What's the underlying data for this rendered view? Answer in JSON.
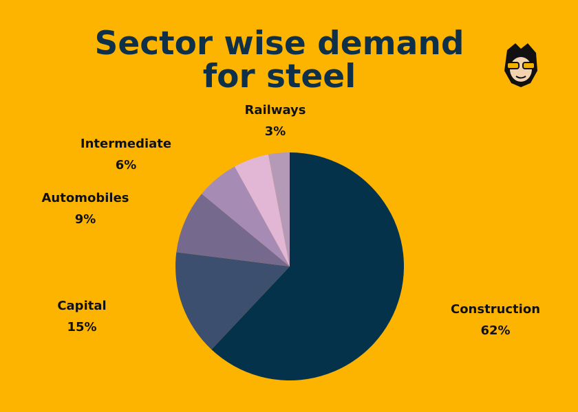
{
  "chart_data": {
    "type": "pie",
    "title": "Sector wise demand for steel",
    "categories": [
      "Construction",
      "Capital",
      "Automobiles",
      "Intermediate",
      null,
      "Railways"
    ],
    "values": [
      62,
      15,
      9,
      6,
      5,
      3
    ],
    "value_labels": [
      "62%",
      "15%",
      "9%",
      "6%",
      null,
      "3%"
    ],
    "colors": [
      "#04324b",
      "#3d4f6f",
      "#75698e",
      "#a68cb5",
      "#e2b7d6",
      "#b59ab8"
    ]
  }
}
